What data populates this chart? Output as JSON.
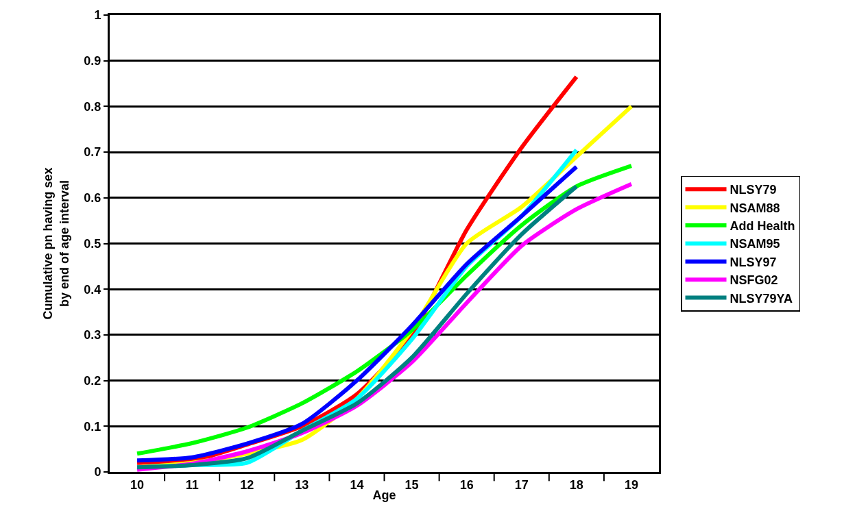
{
  "chart_data": {
    "type": "line",
    "xlabel": "Age",
    "ylabel": "Cumulative pn having sex\nby end of age interval",
    "categories": [
      "10",
      "11",
      "12",
      "13",
      "14",
      "15",
      "16",
      "17",
      "18",
      "19"
    ],
    "ylim": [
      0,
      1
    ],
    "yticks": [
      0,
      0.1,
      0.2,
      0.3,
      0.4,
      0.5,
      0.6,
      0.7,
      0.8,
      0.9,
      1
    ],
    "grid": "y",
    "legend": "right",
    "marker": "none",
    "line_style": "solid",
    "series": [
      {
        "name": "NLSY79",
        "color": "#ff0000",
        "values": [
          0.02,
          0.025,
          0.06,
          0.1,
          0.17,
          0.3,
          0.53,
          0.71,
          0.865,
          null
        ]
      },
      {
        "name": "NSAM88",
        "color": "#ffff00",
        "values": [
          0.01,
          0.02,
          0.04,
          0.07,
          0.16,
          0.31,
          0.5,
          0.58,
          0.69,
          0.8
        ]
      },
      {
        "name": "Add Health",
        "color": "#00ff00",
        "values": [
          0.04,
          0.063,
          0.097,
          0.15,
          0.22,
          0.31,
          0.43,
          0.54,
          0.625,
          0.67
        ]
      },
      {
        "name": "NSAM95",
        "color": "#00ffff",
        "values": [
          0.01,
          0.015,
          0.02,
          0.09,
          0.16,
          0.29,
          0.45,
          0.56,
          0.705,
          null
        ]
      },
      {
        "name": "NLSY97",
        "color": "#0000ff",
        "values": [
          0.025,
          0.032,
          0.062,
          0.105,
          0.2,
          0.32,
          0.455,
          0.56,
          0.668,
          null
        ]
      },
      {
        "name": "NSFG02",
        "color": "#ff00ff",
        "values": [
          0.005,
          0.018,
          0.045,
          0.085,
          0.145,
          0.24,
          0.37,
          0.495,
          0.575,
          0.63
        ]
      },
      {
        "name": "NLSY79YA",
        "color": "#008080",
        "values": [
          0.01,
          0.015,
          0.03,
          0.09,
          0.15,
          0.25,
          0.39,
          0.52,
          0.625,
          null
        ]
      }
    ]
  }
}
